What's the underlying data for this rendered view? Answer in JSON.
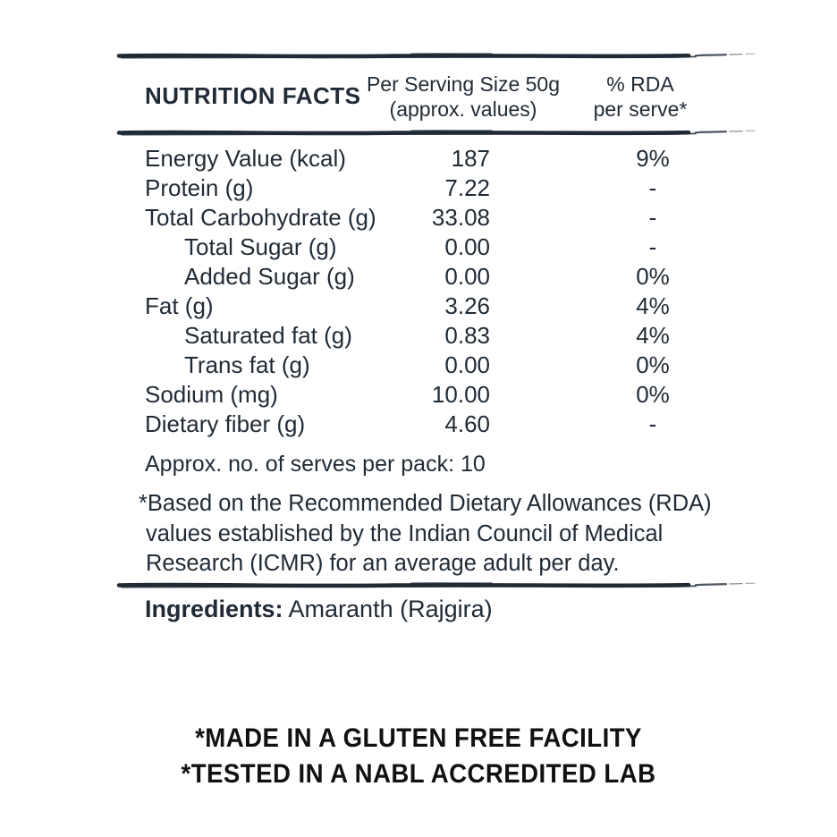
{
  "colors": {
    "ink": "#212b36",
    "footer_black": "#111111",
    "background": "#ffffff"
  },
  "table": {
    "title": "NUTRITION FACTS",
    "serving_header_line1": "Per Serving Size 50g",
    "serving_header_line2": "(approx. values)",
    "rda_header_line1": "% RDA",
    "rda_header_line2": "per serve*",
    "rows": [
      {
        "label": "Energy Value (kcal)",
        "value": "187",
        "rda": "9%",
        "indent": false
      },
      {
        "label": "Protein (g)",
        "value": "7.22",
        "rda": "-",
        "indent": false
      },
      {
        "label": "Total Carbohydrate (g)",
        "value": "33.08",
        "rda": "-",
        "indent": false
      },
      {
        "label": "Total Sugar (g)",
        "value": "0.00",
        "rda": "-",
        "indent": true
      },
      {
        "label": "Added Sugar (g)",
        "value": "0.00",
        "rda": "0%",
        "indent": true
      },
      {
        "label": "Fat (g)",
        "value": "3.26",
        "rda": "4%",
        "indent": false
      },
      {
        "label": "Saturated fat (g)",
        "value": "0.83",
        "rda": "4%",
        "indent": true
      },
      {
        "label": "Trans fat (g)",
        "value": "0.00",
        "rda": "0%",
        "indent": true
      },
      {
        "label": "Sodium (mg)",
        "value": "10.00",
        "rda": "0%",
        "indent": false
      },
      {
        "label": "Dietary fiber (g)",
        "value": "4.60",
        "rda": "-",
        "indent": false
      }
    ],
    "serves_note": "Approx. no. of serves per pack: 10",
    "rda_footnote_lines": [
      "*Based on the Recommended Dietary Allowances (RDA)",
      "values established by the Indian Council of Medical",
      "Research (ICMR) for an average adult per day."
    ]
  },
  "ingredients": {
    "label": "Ingredients:",
    "value": "Amaranth (Rajgira)"
  },
  "footer": {
    "line1": "*MADE IN A GLUTEN FREE FACILITY",
    "line2": "*TESTED IN A NABL ACCREDITED LAB"
  }
}
